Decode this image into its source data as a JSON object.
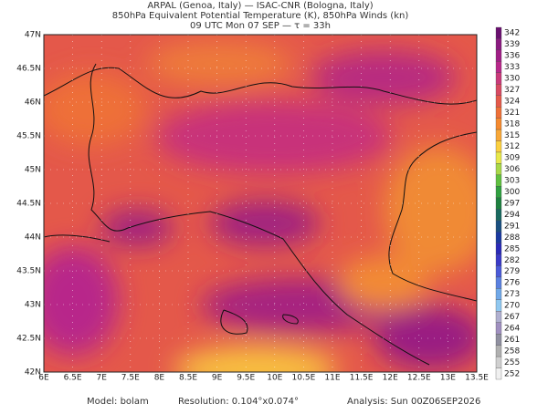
{
  "header": {
    "lines": [
      "ARPAL (Genoa, Italy)  —  ISAC-CNR (Bologna, Italy)",
      "850hPa Equivalent Potential Temperature (K), 850hPa Winds (kn)",
      "09 UTC Mon 07 SEP  —  τ = 33h"
    ]
  },
  "map": {
    "lat_labels": [
      "47N",
      "46.5N",
      "46N",
      "45.5N",
      "45N",
      "44.5N",
      "44N",
      "43.5N",
      "43N",
      "42.5N",
      "42N"
    ],
    "lon_labels": [
      "6E",
      "6.5E",
      "7E",
      "7.5E",
      "8E",
      "8.5E",
      "9E",
      "9.5E",
      "10E",
      "10.5E",
      "11E",
      "11.5E",
      "12E",
      "12.5E",
      "13E",
      "13.5E"
    ]
  },
  "colorbar": {
    "labels": [
      342,
      339,
      336,
      333,
      330,
      327,
      324,
      321,
      318,
      315,
      312,
      309,
      306,
      303,
      300,
      297,
      294,
      291,
      288,
      285,
      282,
      279,
      276,
      273,
      270,
      267,
      264,
      261,
      258,
      255,
      252
    ]
  },
  "footer": {
    "items": [
      "Model:  bolam",
      "Resolution:  0.104°x0.074°",
      "Analysis:  Sun  00Z06SEP2026"
    ]
  }
}
